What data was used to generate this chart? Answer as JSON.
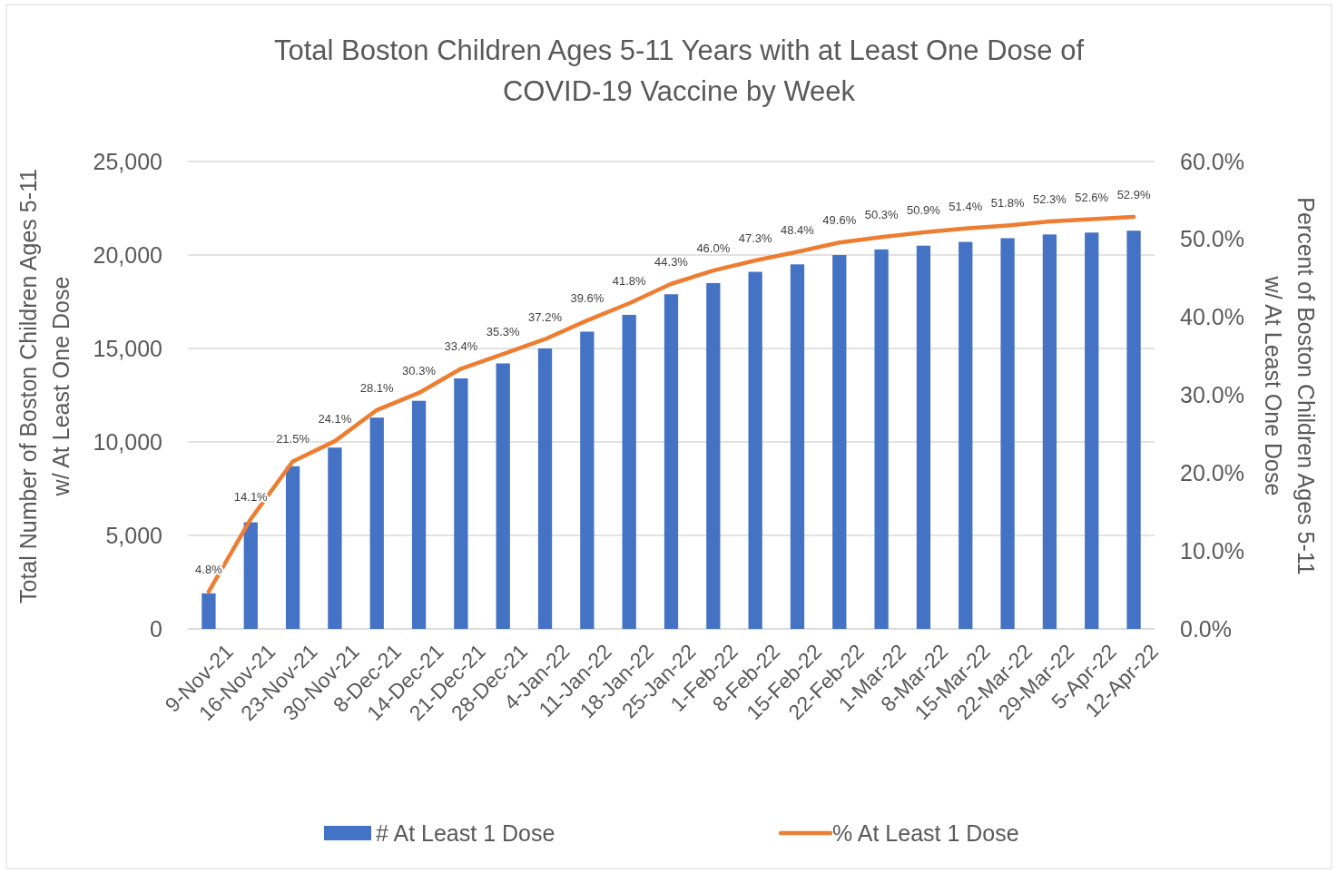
{
  "chart_data": {
    "type": "bar",
    "title": "Total Boston Children Ages 5-11 Years with at Least One Dose of\nCOVID-19 Vaccine by Week",
    "ylabel": "Total Number of Boston Children Ages 5-11\nw/ At Least One Dose",
    "y2label": "Percent of Boston Children  Ages 5-11\nw/ At Least One Dose",
    "categories": [
      "9-Nov-21",
      "16-Nov-21",
      "23-Nov-21",
      "30-Nov-21",
      "8-Dec-21",
      "14-Dec-21",
      "21-Dec-21",
      "28-Dec-21",
      "4-Jan-22",
      "11-Jan-22",
      "18-Jan-22",
      "25-Jan-22",
      "1-Feb-22",
      "8-Feb-22",
      "15-Feb-22",
      "22-Feb-22",
      "1-Mar-22",
      "8-Mar-22",
      "15-Mar-22",
      "22-Mar-22",
      "29-Mar-22",
      "5-Apr-22",
      "12-Apr-22"
    ],
    "series": [
      {
        "name": "# At Least 1 Dose",
        "color": "#4472c4",
        "values": [
          1900,
          5700,
          8700,
          9700,
          11300,
          12200,
          13400,
          14200,
          15000,
          15900,
          16800,
          17900,
          18500,
          19100,
          19500,
          20000,
          20300,
          20500,
          20700,
          20900,
          21100,
          21200,
          21300
        ]
      },
      {
        "name": "% At Least 1 Dose",
        "type": "line",
        "axis": "y2",
        "color": "#ed7d31",
        "values": [
          4.8,
          14.1,
          21.5,
          24.1,
          28.1,
          30.3,
          33.4,
          35.3,
          37.2,
          39.6,
          41.8,
          44.3,
          46.0,
          47.3,
          48.4,
          49.6,
          50.3,
          50.9,
          51.4,
          51.8,
          52.3,
          52.6,
          52.9
        ],
        "value_labels": [
          "4.8%",
          "14.1%",
          "21.5%",
          "24.1%",
          "28.1%",
          "30.3%",
          "33.4%",
          "35.3%",
          "37.2%",
          "39.6%",
          "41.8%",
          "44.3%",
          "46.0%",
          "47.3%",
          "48.4%",
          "49.6%",
          "50.3%",
          "50.9%",
          "51.4%",
          "51.8%",
          "52.3%",
          "52.6%",
          "52.9%"
        ]
      }
    ],
    "ylim": [
      0,
      25000
    ],
    "yticks": [
      {
        "value": 0,
        "label": "0"
      },
      {
        "value": 5000,
        "label": "5,000"
      },
      {
        "value": 10000,
        "label": "10,000"
      },
      {
        "value": 15000,
        "label": "15,000"
      },
      {
        "value": 20000,
        "label": "20,000"
      },
      {
        "value": 25000,
        "label": "25,000"
      }
    ],
    "y2lim": [
      0,
      60
    ],
    "y2ticks": [
      {
        "value": 0,
        "label": "0.0%"
      },
      {
        "value": 10,
        "label": "10.0%"
      },
      {
        "value": 20,
        "label": "20.0%"
      },
      {
        "value": 30,
        "label": "30.0%"
      },
      {
        "value": 40,
        "label": "40.0%"
      },
      {
        "value": 50,
        "label": "50.0%"
      },
      {
        "value": 60,
        "label": "60.0%"
      }
    ],
    "grid": "y",
    "legend": "bottom",
    "marker": "none",
    "line_style": "solid"
  }
}
